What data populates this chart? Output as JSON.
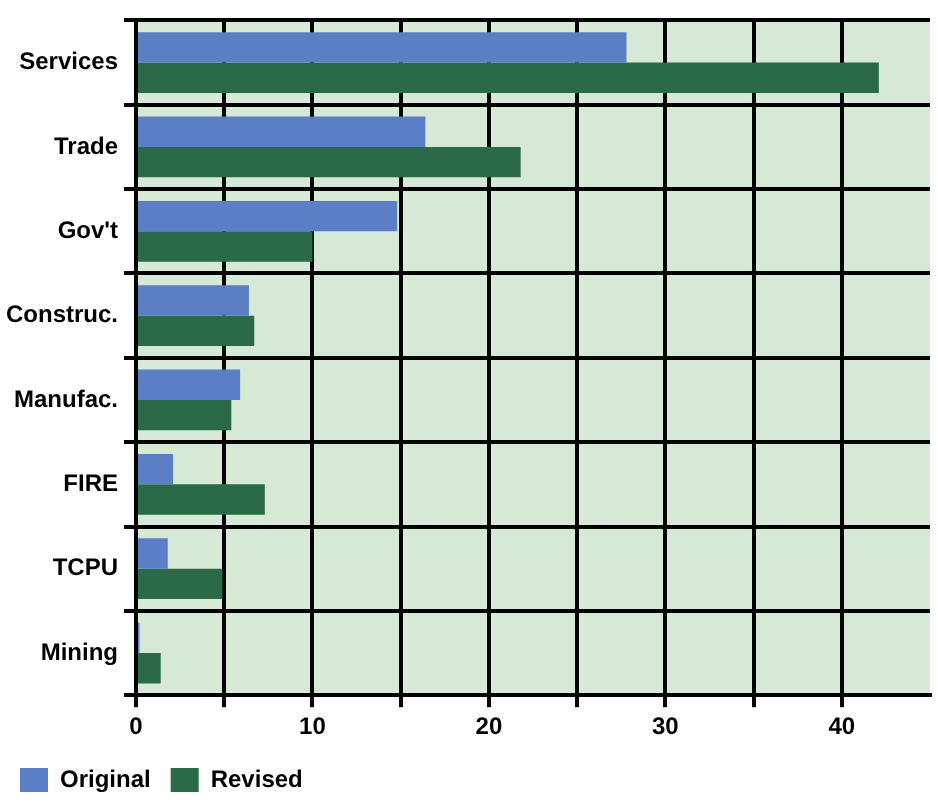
{
  "chart_data": {
    "type": "bar",
    "orientation": "horizontal",
    "categories": [
      "Services",
      "Trade",
      "Gov't",
      "Construc.",
      "Manufac.",
      "FIRE",
      "TCPU",
      "Mining"
    ],
    "series": [
      {
        "name": "Original",
        "color": "#5b7fc4",
        "values": [
          27.8,
          16.4,
          14.8,
          6.4,
          5.9,
          2.1,
          1.8,
          0.2
        ]
      },
      {
        "name": "Revised",
        "color": "#2a6a48",
        "values": [
          42.1,
          21.8,
          10.0,
          6.7,
          5.4,
          7.3,
          4.9,
          1.4
        ]
      }
    ],
    "xlim": [
      0,
      45
    ],
    "xticks": [
      0,
      {
        "value": 5,
        "label": null
      },
      10,
      {
        "value": 15,
        "label": null
      },
      20,
      {
        "value": 25,
        "label": null
      },
      30,
      {
        "value": 35,
        "label": null
      },
      40
    ],
    "grid": true,
    "legend": "bottom left"
  }
}
